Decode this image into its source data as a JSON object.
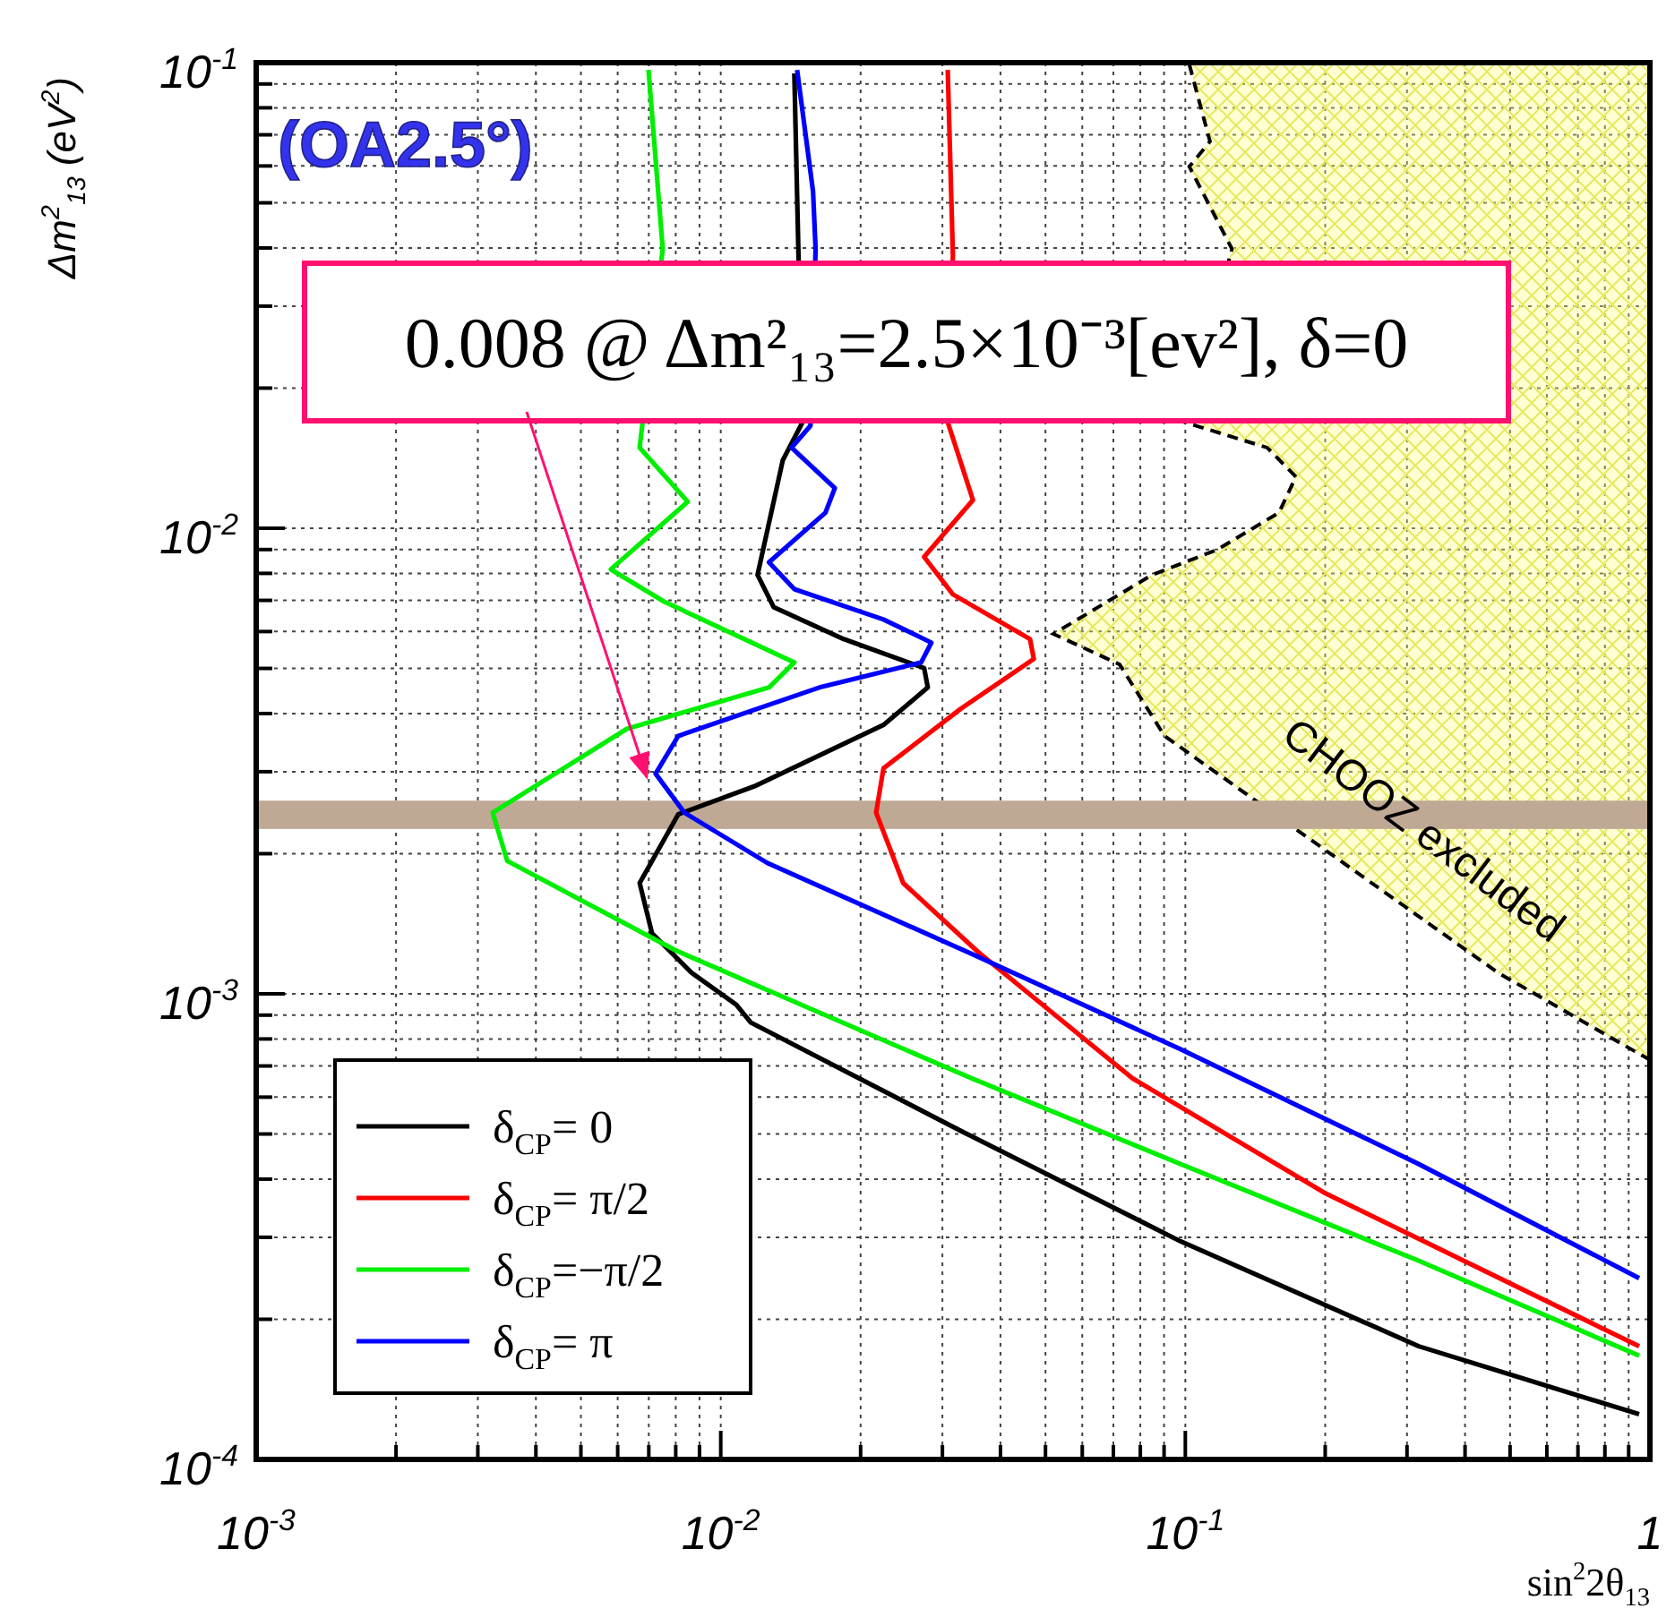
{
  "chart_data": {
    "type": "line",
    "xlabel": "sin$^{2}$2θ$_{13}$",
    "ylabel": "Δm$^{2}$$_{13}$ (eV$^{2}$)",
    "log": "xy",
    "grid": true,
    "legend": "bottom left",
    "xlim": [
      0.001,
      1
    ],
    "ylim": [
      0.0001,
      0.1
    ],
    "xticks": [
      {
        "value": 0.001,
        "label": "10$^{-3}$"
      },
      {
        "value": 0.002,
        "label": null
      },
      {
        "value": 0.003,
        "label": null
      },
      {
        "value": 0.004,
        "label": null
      },
      {
        "value": 0.005,
        "label": null
      },
      {
        "value": 0.006,
        "label": null
      },
      {
        "value": 0.007,
        "label": null
      },
      {
        "value": 0.008,
        "label": null
      },
      {
        "value": 0.009,
        "label": null
      },
      {
        "value": 0.01,
        "label": "10$^{-2}$"
      },
      {
        "value": 0.02,
        "label": null
      },
      {
        "value": 0.03,
        "label": null
      },
      {
        "value": 0.04,
        "label": null
      },
      {
        "value": 0.05,
        "label": null
      },
      {
        "value": 0.06,
        "label": null
      },
      {
        "value": 0.07,
        "label": null
      },
      {
        "value": 0.08,
        "label": null
      },
      {
        "value": 0.09,
        "label": null
      },
      {
        "value": 0.1,
        "label": "10$^{-1}$"
      },
      {
        "value": 0.2,
        "label": null
      },
      {
        "value": 0.3,
        "label": null
      },
      {
        "value": 0.4,
        "label": null
      },
      {
        "value": 0.5,
        "label": null
      },
      {
        "value": 0.6,
        "label": null
      },
      {
        "value": 0.7,
        "label": null
      },
      {
        "value": 0.8,
        "label": null
      },
      {
        "value": 0.9,
        "label": null
      },
      1
    ],
    "yticks": [
      {
        "value": 0.0001,
        "label": "10$^{-4}$"
      },
      {
        "value": 0.0002,
        "label": null
      },
      {
        "value": 0.0003,
        "label": null
      },
      {
        "value": 0.0004,
        "label": null
      },
      {
        "value": 0.0005,
        "label": null
      },
      {
        "value": 0.0006,
        "label": null
      },
      {
        "value": 0.0007,
        "label": null
      },
      {
        "value": 0.0008,
        "label": null
      },
      {
        "value": 0.0009,
        "label": null
      },
      {
        "value": 0.001,
        "label": "10$^{-3}$"
      },
      {
        "value": 0.002,
        "label": null
      },
      {
        "value": 0.003,
        "label": null
      },
      {
        "value": 0.004,
        "label": null
      },
      {
        "value": 0.005,
        "label": null
      },
      {
        "value": 0.006,
        "label": null
      },
      {
        "value": 0.007,
        "label": null
      },
      {
        "value": 0.008,
        "label": null
      },
      {
        "value": 0.009,
        "label": null
      },
      {
        "value": 0.01,
        "label": "10$^{-2}$"
      },
      {
        "value": 0.02,
        "label": null
      },
      {
        "value": 0.03,
        "label": null
      },
      {
        "value": 0.04,
        "label": null
      },
      {
        "value": 0.05,
        "label": null
      },
      {
        "value": 0.06,
        "label": null
      },
      {
        "value": 0.07,
        "label": null
      },
      {
        "value": 0.08,
        "label": null
      },
      {
        "value": 0.09,
        "label": null
      },
      {
        "value": 0.1,
        "label": "10$^{-1}$"
      }
    ],
    "bands": [
      {
        "axis": "y",
        "from": 0.00226,
        "to": 0.0026,
        "color": "#bfa995"
      }
    ],
    "series": [
      {
        "type": "area",
        "color": "#ffff80",
        "x": [
          1,
          0.102,
          0.113,
          0.102,
          0.126,
          0.0995,
          0.15,
          0.173,
          0.159,
          0.117,
          0.0848,
          0.052,
          0.0722,
          0.0902,
          0.219,
          0.471,
          1
        ],
        "values": [
          0.1,
          0.0991,
          0.0677,
          0.0598,
          0.0398,
          0.0169,
          0.0149,
          0.0129,
          0.0108,
          0.00899,
          0.00794,
          0.00593,
          0.0051,
          0.00358,
          0.00191,
          0.00111,
          0.000721
        ]
      },
      {
        "name": "δ$_{CP}$= 0",
        "color": "#000000",
        "x": [
          0.0144,
          0.0147,
          0.015,
          0.0136,
          0.012,
          0.013,
          0.0184,
          0.0274,
          0.0279,
          0.0224,
          0.0118,
          0.0081,
          0.00669,
          0.00711,
          0.00865,
          0.0108,
          0.0116,
          0.0331,
          0.0977,
          0.318,
          0.948
        ],
        "values": [
          0.0948,
          0.0385,
          0.0169,
          0.014,
          0.00794,
          0.00677,
          0.00578,
          0.00501,
          0.00455,
          0.00378,
          0.00279,
          0.00243,
          0.00173,
          0.00135,
          0.00111,
          0.000948,
          0.000868,
          0.000506,
          0.000294,
          0.000175,
          0.000125
        ]
      },
      {
        "name": "δ$_{CP}$= π/2",
        "color": "#ff0000",
        "x": [
          0.0308,
          0.0316,
          0.0308,
          0.0349,
          0.0274,
          0.0316,
          0.0463,
          0.0472,
          0.0328,
          0.0224,
          0.0216,
          0.0247,
          0.0358,
          0.0769,
          0.199,
          0.948
        ],
        "values": [
          0.0965,
          0.0385,
          0.0169,
          0.0115,
          0.00868,
          0.00721,
          0.00578,
          0.00524,
          0.00409,
          0.00305,
          0.00245,
          0.00173,
          0.00123,
          0.000659,
          0.000374,
          0.000175
        ]
      },
      {
        "name": "δ$_{CP}$=−π/2",
        "color": "#00ee00",
        "x": [
          0.00699,
          0.0075,
          0.00669,
          0.00849,
          0.0058,
          0.00757,
          0.0144,
          0.0127,
          0.00628,
          0.00323,
          0.00347,
          0.00799,
          0.0346,
          0.0977,
          0.318,
          0.948
        ],
        "values": [
          0.0965,
          0.0398,
          0.0149,
          0.0114,
          0.00816,
          0.00695,
          0.00515,
          0.00455,
          0.00371,
          0.00245,
          0.00193,
          0.00124,
          0.000659,
          0.000431,
          0.000267,
          0.000167
        ]
      },
      {
        "name": "δ$_{CP}$= π",
        "color": "#0000ff",
        "x": [
          0.0146,
          0.0158,
          0.016,
          0.0156,
          0.0142,
          0.0176,
          0.0168,
          0.0127,
          0.0144,
          0.0224,
          0.0284,
          0.027,
          0.0163,
          0.0081,
          0.00724,
          0.00835,
          0.0126,
          0.0346,
          0.0977,
          0.318,
          0.948
        ],
        "values": [
          0.0965,
          0.0529,
          0.0398,
          0.0166,
          0.0149,
          0.0122,
          0.0108,
          0.00845,
          0.0074,
          0.00637,
          0.00568,
          0.00515,
          0.00455,
          0.00358,
          0.00297,
          0.00245,
          0.00191,
          0.00122,
          0.00076,
          0.000431,
          0.000245
        ]
      }
    ],
    "annotations": [
      "(OA2.5°)",
      {
        "text": "0.008 @ Δm²₁₃=2.5×10⁻³[ev²], δ=0",
        "x": 0.00693,
        "y": 0.00292
      },
      "CHOOZ excluded"
    ]
  }
}
